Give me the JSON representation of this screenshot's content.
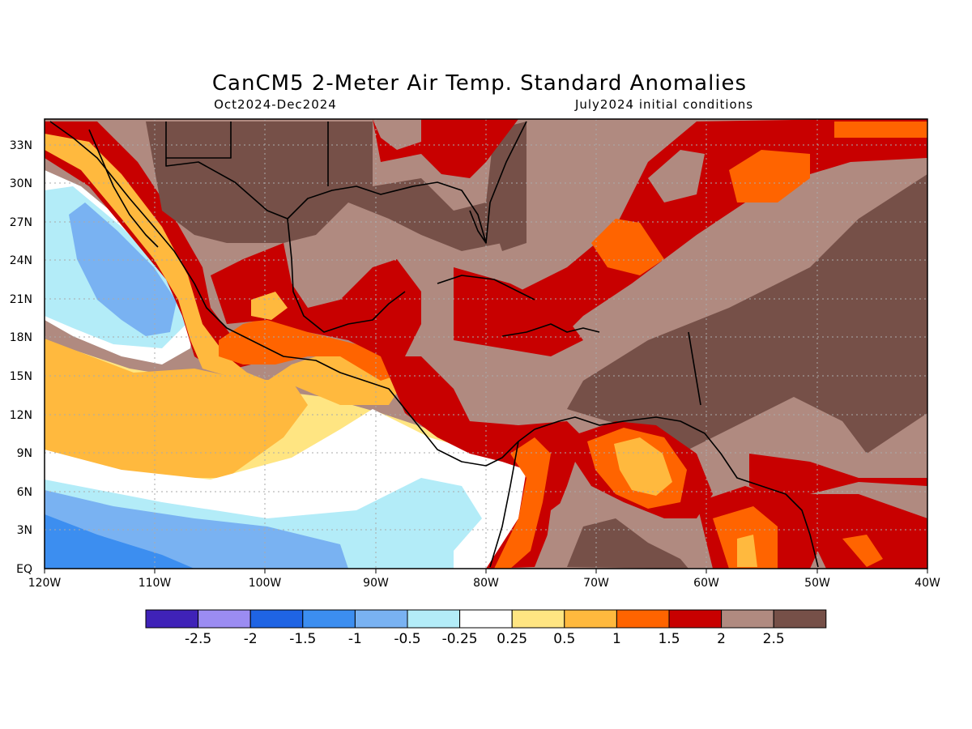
{
  "header": {
    "title": "CanCM5 2-Meter Air Temp. Standard Anomalies",
    "period": "Oct2024-Dec2024",
    "init": "July2024 initial conditions"
  },
  "map": {
    "lon_range": [
      -120,
      -40
    ],
    "lat_range": [
      0,
      35
    ],
    "x_ticks": [
      "120W",
      "110W",
      "100W",
      "90W",
      "80W",
      "70W",
      "60W",
      "50W",
      "40W"
    ],
    "y_ticks": [
      "EQ",
      "3N",
      "6N",
      "9N",
      "12N",
      "15N",
      "18N",
      "21N",
      "24N",
      "27N",
      "30N",
      "33N"
    ],
    "gridlines": "dotted",
    "coastlines": true,
    "colors": {
      "lt_m2_5": "#3f22b8",
      "m2_5_m2": "#9b8cf2",
      "m2_m1_5": "#1f64e4",
      "m1_5_m1": "#3c8ef0",
      "m1_m0_5": "#79b2f2",
      "m0_5_m0_25": "#b3ecf8",
      "neutral": "#ffffff",
      "p0_25_0_5": "#ffe582",
      "p0_5_1": "#ffb93e",
      "p1_1_5": "#ff6400",
      "p1_5_2": "#c80000",
      "p2_2_5": "#b08a80",
      "gt_2_5": "#765048"
    }
  },
  "colorbar": {
    "labels": [
      "-2.5",
      "-2",
      "-1.5",
      "-1",
      "-0.5",
      "-0.25",
      "0.25",
      "0.5",
      "1",
      "1.5",
      "2",
      "2.5"
    ],
    "colors": [
      "#3f22b8",
      "#9b8cf2",
      "#1f64e4",
      "#3c8ef0",
      "#79b2f2",
      "#b3ecf8",
      "#ffffff",
      "#ffe582",
      "#ffb93e",
      "#ff6400",
      "#c80000",
      "#b08a80",
      "#765048"
    ]
  }
}
